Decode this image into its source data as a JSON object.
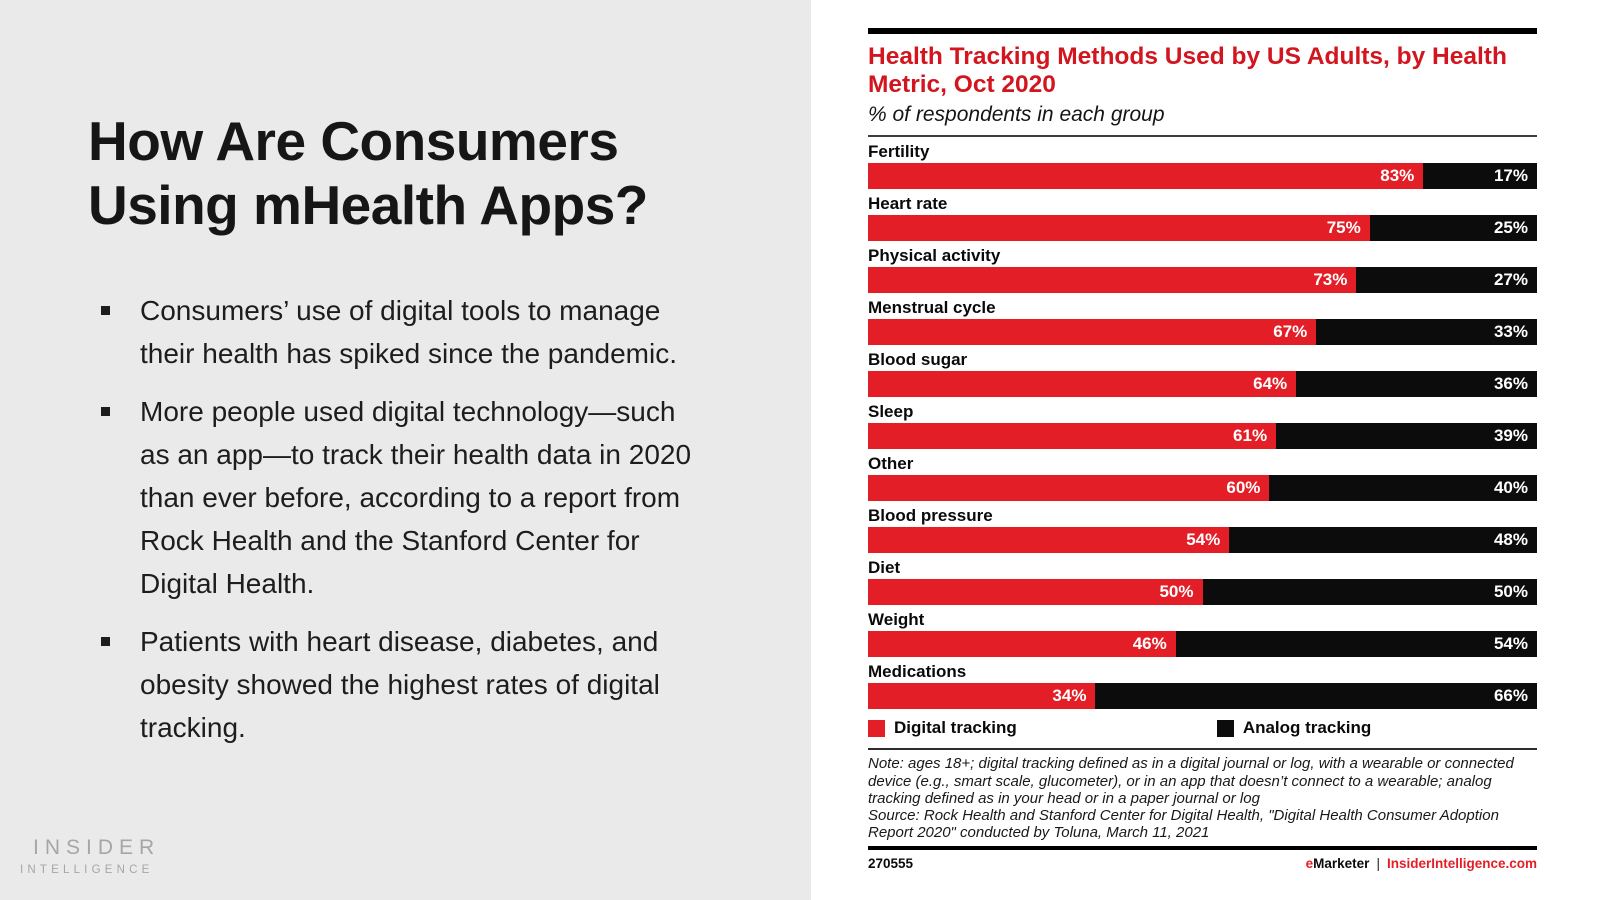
{
  "left_panel": {
    "title": "How Are Consumers Using mHealth Apps?",
    "bullets": [
      "Consumers’ use of digital tools to manage their health has spiked since the pandemic.",
      "More people used digital technology—such as an app—to track their health data in 2020 than ever before, according to a report from Rock Health and the Stanford Center for Digital Health.",
      "Patients with heart disease, diabetes, and obesity showed the highest rates of digital tracking."
    ],
    "logo_line1": "INSIDER",
    "logo_line2": "INTELLIGENCE"
  },
  "chart": {
    "title": "Health Tracking Methods Used by US Adults, by Health Metric, Oct 2020",
    "subtitle": "% of respondents in each group",
    "legend": [
      {
        "label": "Digital tracking"
      },
      {
        "label": "Analog tracking"
      }
    ],
    "note": "Note: ages 18+; digital tracking defined as in a digital journal or log, with a wearable or connected device (e.g., smart scale, glucometer), or in an app that doesn’t connect to a wearable; analog tracking defined as in your head or in a paper journal or log",
    "source": "Source: Rock Health and Stanford Center for Digital Health, \"Digital Health Consumer Adoption Report 2020\" conducted by Toluna, March 11, 2021",
    "footer_id": "270555",
    "brand_e": "e",
    "brand_rest": "Marketer",
    "separator": "|",
    "site": "InsiderIntelligence.com"
  },
  "chart_data": {
    "type": "bar",
    "orientation": "horizontal-stacked",
    "title": "Health Tracking Methods Used by US Adults, by Health Metric, Oct 2020",
    "subtitle": "% of respondents in each group",
    "categories": [
      "Fertility",
      "Heart rate",
      "Physical activity",
      "Menstrual cycle",
      "Blood sugar",
      "Sleep",
      "Other",
      "Blood pressure",
      "Diet",
      "Weight",
      "Medications"
    ],
    "series": [
      {
        "name": "Digital tracking",
        "values": [
          83,
          75,
          73,
          67,
          64,
          61,
          60,
          54,
          50,
          46,
          34
        ]
      },
      {
        "name": "Analog tracking",
        "values": [
          17,
          25,
          27,
          33,
          36,
          39,
          40,
          48,
          50,
          54,
          66
        ]
      }
    ],
    "value_suffix": "%",
    "xlabel": "",
    "ylabel": "",
    "xlim": [
      0,
      100
    ],
    "grid": false,
    "legend_position": "bottom",
    "value_labels": "inside-end, white bold"
  },
  "colors": {
    "red": "#e41e26",
    "title_red": "#d2151e",
    "bar_black": "#0c0c0c",
    "left_bg": "#eaeaea",
    "logo_gray": "#a6a6a6"
  }
}
